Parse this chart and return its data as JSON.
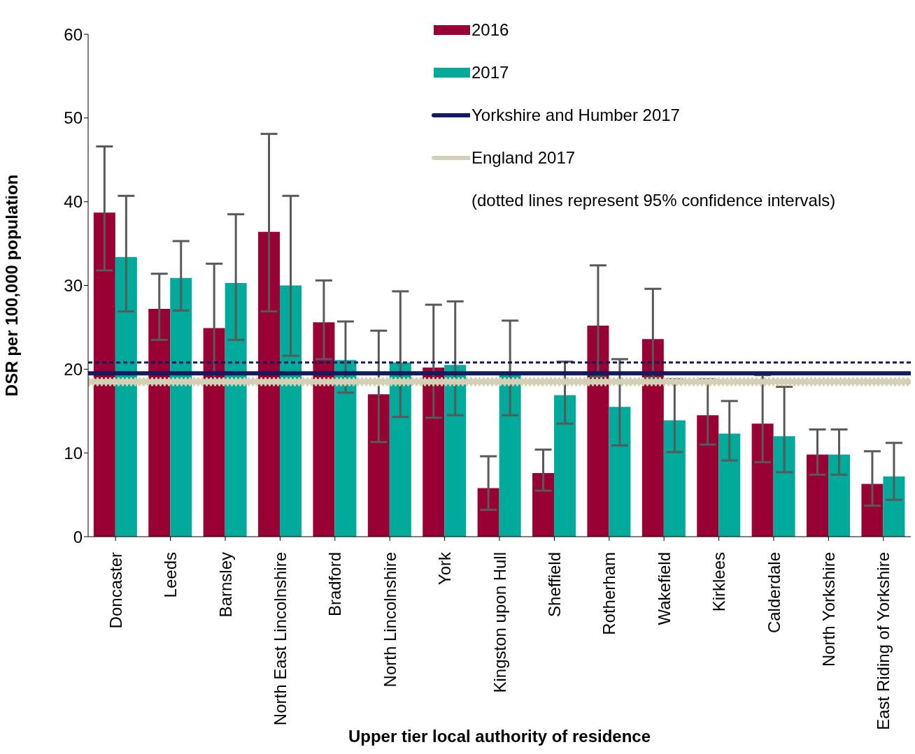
{
  "chart_data": {
    "type": "bar",
    "xlabel": "Upper tier local authority of residence",
    "ylabel": "DSR per 100,000 population",
    "categories": [
      "Doncaster",
      "Leeds",
      "Barnsley",
      "North East Lincolnshire",
      "Bradford",
      "North Lincolnshire",
      "York",
      "Kingston upon Hull",
      "Sheffield",
      "Rotherham",
      "Wakefield",
      "Kirklees",
      "Calderdale",
      "North Yorkshire",
      "East Riding of Yorkshire"
    ],
    "series": [
      {
        "name": "2016",
        "color": "#990033",
        "values": [
          38.7,
          27.2,
          24.9,
          36.4,
          25.6,
          17.0,
          20.2,
          5.8,
          7.6,
          25.2,
          23.6,
          14.5,
          13.5,
          9.8,
          6.3
        ],
        "errors": [
          [
            31.8,
            46.6
          ],
          [
            23.5,
            31.4
          ],
          [
            18.8,
            32.6
          ],
          [
            26.9,
            48.1
          ],
          [
            21.2,
            30.6
          ],
          [
            11.3,
            24.6
          ],
          [
            14.2,
            27.7
          ],
          [
            3.2,
            9.6
          ],
          [
            5.5,
            10.4
          ],
          [
            19.1,
            32.4
          ],
          [
            19.0,
            29.6
          ],
          [
            11.0,
            18.8
          ],
          [
            8.9,
            19.3
          ],
          [
            7.4,
            12.8
          ],
          [
            3.7,
            10.2
          ]
        ]
      },
      {
        "name": "2017",
        "color": "#00ab9b",
        "values": [
          33.4,
          30.9,
          30.3,
          30.0,
          21.1,
          20.8,
          20.5,
          19.3,
          16.9,
          15.5,
          13.9,
          12.3,
          12.0,
          9.8,
          7.2
        ],
        "errors": [
          [
            26.9,
            40.7
          ],
          [
            27.0,
            35.3
          ],
          [
            23.5,
            38.5
          ],
          [
            21.6,
            40.7
          ],
          [
            17.2,
            25.7
          ],
          [
            14.3,
            29.3
          ],
          [
            14.5,
            28.1
          ],
          [
            14.5,
            25.8
          ],
          [
            13.5,
            20.9
          ],
          [
            10.9,
            21.2
          ],
          [
            10.1,
            18.8
          ],
          [
            9.1,
            16.2
          ],
          [
            7.7,
            17.9
          ],
          [
            7.4,
            12.8
          ],
          [
            4.4,
            11.2
          ]
        ]
      }
    ],
    "ref_lines": [
      {
        "axis": "y",
        "value": 20.8,
        "color": "#141a5e",
        "line_style": "dashed"
      },
      {
        "axis": "y",
        "value": 19.5,
        "label": "Yorkshire and Humber 2017",
        "color": "#141a5e",
        "line_style": "solid"
      },
      {
        "axis": "y",
        "value": 18.9,
        "color": "#d3d0b5",
        "line_style": "dotted"
      },
      {
        "axis": "y",
        "value": 18.1,
        "color": "#d3d0b5",
        "line_style": "dotted"
      },
      {
        "axis": "y",
        "value": 18.5,
        "label": "England 2017",
        "color": "#d3d0b5",
        "line_style": "solid"
      }
    ],
    "annotations": [
      "(dotted lines represent 95% confidence intervals)"
    ],
    "ylim": [
      0,
      60
    ],
    "yticks": [
      0,
      10,
      20,
      30,
      40,
      50,
      60
    ],
    "grid": false,
    "legend": "top right"
  }
}
